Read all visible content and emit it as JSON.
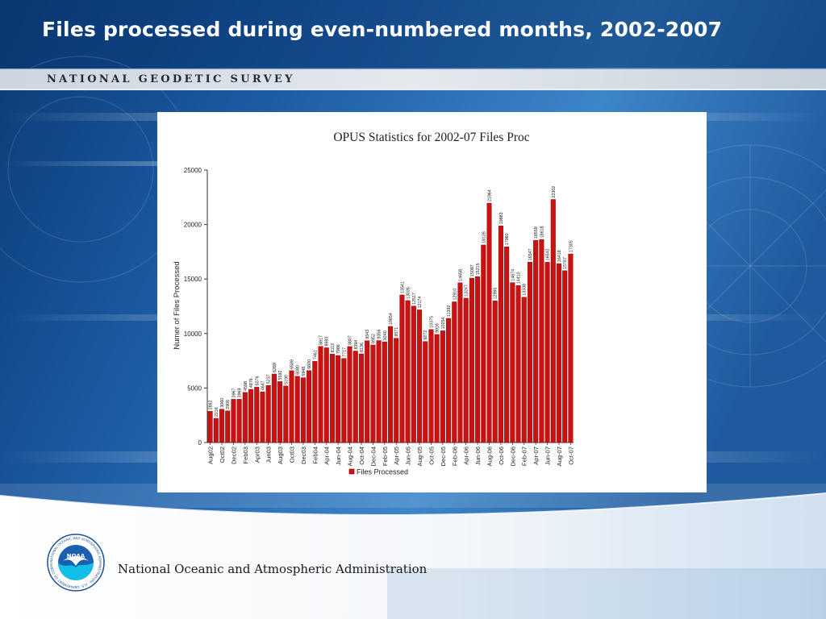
{
  "slide": {
    "title": "Files processed during even-numbered months, 2002-2007",
    "band_text": "NATIONAL GEODETIC SURVEY",
    "agency": "National Oceanic and Atmospheric Administration",
    "logo_text": "NOAA",
    "seal_ring_text": "NATIONAL OCEANIC AND ATMOSPHERIC ADMINISTRATION · U.S. DEPARTMENT OF COMMERCE"
  },
  "colors": {
    "bar": "#cc1111",
    "bar_edge": "#7a0000",
    "title_text": "#ffffff",
    "background_deep": "#0d3c78",
    "band": "#d6dde4"
  },
  "chart_data": {
    "type": "bar",
    "title": "OPUS Statistics for 2002-07 Files Proc",
    "xlabel": "",
    "ylabel": "Numer of Files Processed",
    "ylim": [
      0,
      25000
    ],
    "yticks": [
      0,
      5000,
      10000,
      15000,
      20000,
      25000
    ],
    "grid": false,
    "legend_position": "bottom",
    "x_tick_labels": [
      "Aug02",
      "Oct02",
      "Dec02",
      "Feb03",
      "Apr03",
      "Jun03",
      "Aug03",
      "Oct03",
      "Dec03",
      "Feb04",
      "Apr-04",
      "Jun-04",
      "Aug-04",
      "Oct-04",
      "Dec-04",
      "Feb-05",
      "Apr-05",
      "Jun-05",
      "Aug-05",
      "Oct-05",
      "Dec-05",
      "Feb-06",
      "Apr-06",
      "Jun-06",
      "Aug-06",
      "Oct-06",
      "Dec-06",
      "Feb-07",
      "Apr-07",
      "Jun-07",
      "Aug-07",
      "Oct-07"
    ],
    "series": [
      {
        "name": "Files Processed",
        "values": [
          2862,
          2216,
          3060,
          2906,
          3967,
          3969,
          4598,
          4876,
          5076,
          4647,
          5237,
          6289,
          5592,
          5190,
          6589,
          6080,
          5948,
          6600,
          7461,
          8817,
          8693,
          8112,
          7986,
          7717,
          8807,
          8394,
          8136,
          9343,
          8952,
          9356,
          9240,
          10654,
          9571,
          13541,
          13026,
          12517,
          12174,
          9272,
          10375,
          9916,
          10254,
          11392,
          12910,
          14658,
          13247,
          15087,
          15215,
          18126,
          21964,
          12995,
          19883,
          17960,
          14674,
          14410,
          13338,
          16547,
          18559,
          18618,
          16542,
          22302,
          16418,
          15767,
          17305
        ],
        "labels": [
          "2862",
          "2216",
          "3060",
          "2906",
          "3967",
          "3969",
          "4598",
          "4876",
          "5076",
          "4647",
          "5237",
          "6289",
          "5592",
          "5190",
          "6589",
          "6080",
          "5948",
          "6600",
          "7461",
          "8817",
          "8693",
          "8112",
          "7986",
          "7717",
          "8807",
          "8394",
          "8136",
          "9343",
          "8952",
          "9356",
          "9240",
          "10654",
          "9571",
          "13541",
          "13026",
          "12517",
          "12174",
          "9272",
          "10375",
          "9916",
          "10254",
          "11392",
          "12910",
          "14658",
          "13247",
          "15087",
          "15215",
          "18126",
          "21964",
          "12995",
          "19883",
          "17960",
          "14674",
          "14410",
          "13338",
          "16547",
          "18559",
          "18618",
          "16542",
          "22302",
          "16418",
          "15767",
          "17305"
        ]
      }
    ]
  }
}
